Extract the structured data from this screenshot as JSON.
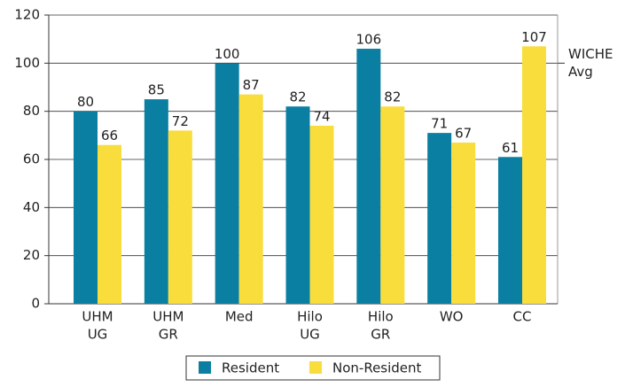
{
  "chart_data": {
    "type": "bar",
    "categories": [
      [
        "UHM",
        "UG"
      ],
      [
        "UHM",
        "GR"
      ],
      [
        "Med"
      ],
      [
        "Hilo",
        "UG"
      ],
      [
        "Hilo",
        "GR"
      ],
      [
        "WO"
      ],
      [
        "CC"
      ]
    ],
    "series": [
      {
        "name": "Resident",
        "color": "#0b7fa2",
        "values": [
          80,
          85,
          100,
          82,
          106,
          71,
          61
        ]
      },
      {
        "name": "Non-Resident",
        "color": "#f8dd3c",
        "values": [
          66,
          72,
          87,
          74,
          82,
          67,
          107
        ]
      }
    ],
    "ylim": [
      0,
      120
    ],
    "yticks": [
      0,
      20,
      40,
      60,
      80,
      100,
      120
    ],
    "grid": true,
    "reference_line": {
      "value": 100,
      "label": [
        "WICHE",
        "Avg"
      ]
    },
    "legend": "bottom"
  }
}
